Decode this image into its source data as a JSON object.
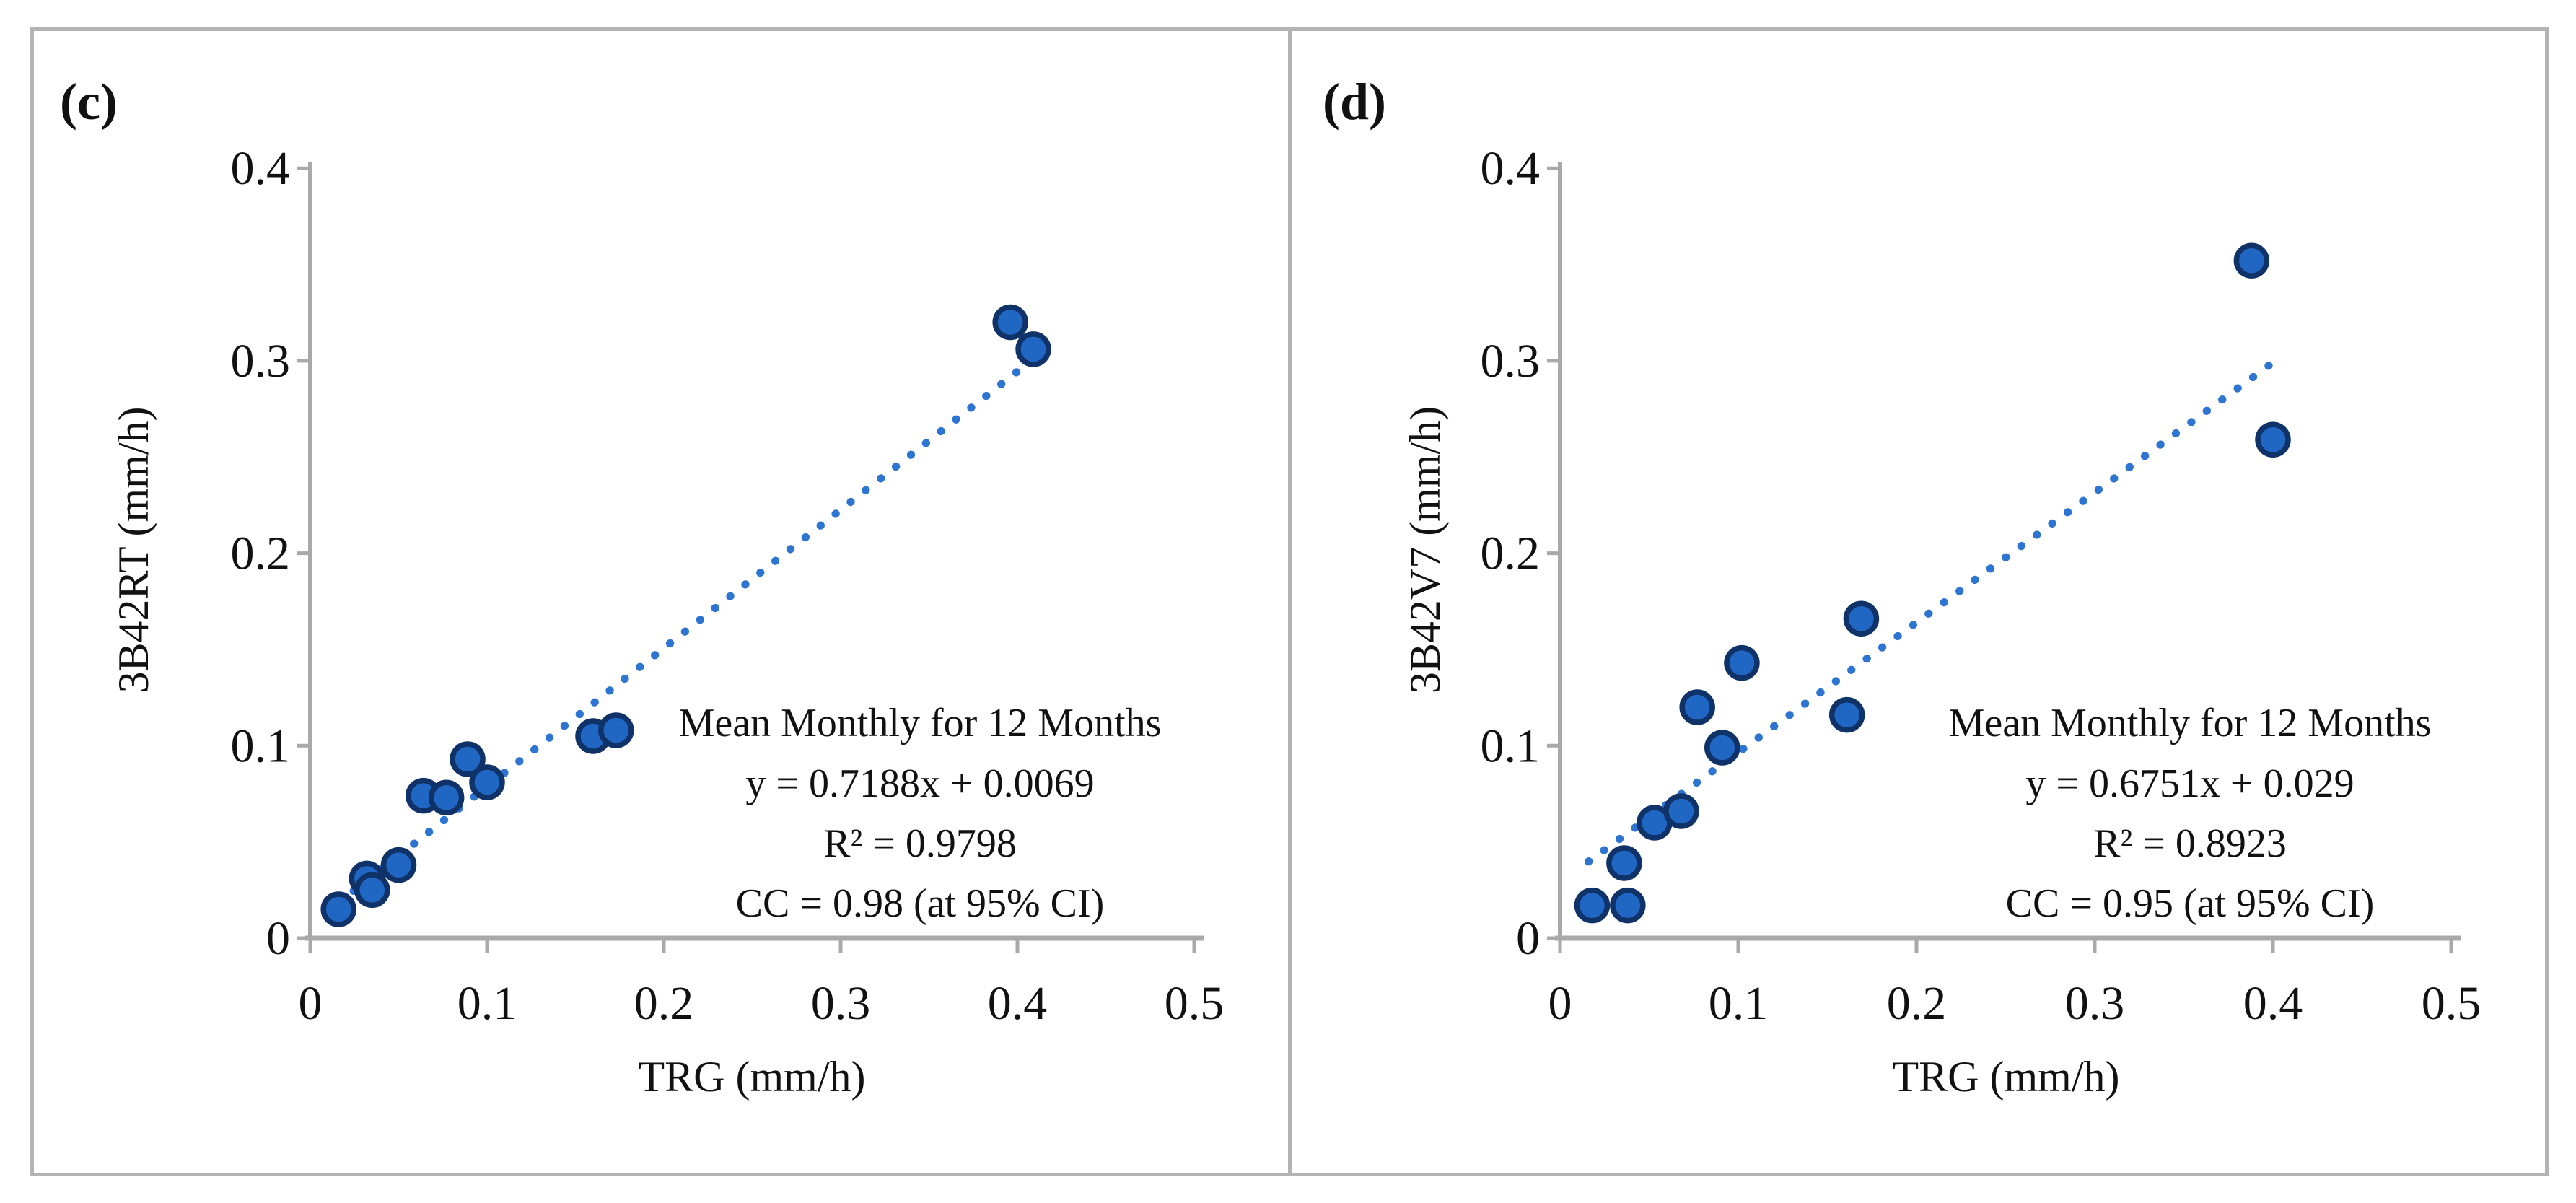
{
  "figure_type": "two-panel scatter figure comparing satellite precipitation estimates to rain gauge data",
  "colors": {
    "marker_fill": "#2067c4",
    "marker_stroke": "#0f3269",
    "trendline": "#2e75d2",
    "axis": "#a9a9a9",
    "frame_border": "#b3b3b3",
    "text": "#111111",
    "background": "#ffffff"
  },
  "chart_data": [
    {
      "type": "scatter",
      "panel_label": "(c)",
      "title": "",
      "xlabel": "TRG (mm/h)",
      "ylabel": "3B42RT (mm/h)",
      "xlim": [
        0,
        0.5
      ],
      "ylim": [
        0,
        0.4
      ],
      "x_tick_labels": [
        "0",
        "0.1",
        "0.2",
        "0.3",
        "0.4",
        "0.5"
      ],
      "y_tick_labels": [
        "0",
        "0.1",
        "0.2",
        "0.3",
        "0.4"
      ],
      "x_ticks": [
        0,
        0.1,
        0.2,
        0.3,
        0.4,
        0.5
      ],
      "y_ticks": [
        0,
        0.1,
        0.2,
        0.3,
        0.4
      ],
      "grid": false,
      "legend": "none",
      "points": [
        [
          0.016,
          0.015
        ],
        [
          0.032,
          0.031
        ],
        [
          0.035,
          0.025
        ],
        [
          0.05,
          0.038
        ],
        [
          0.064,
          0.074
        ],
        [
          0.077,
          0.073
        ],
        [
          0.089,
          0.093
        ],
        [
          0.1,
          0.081
        ],
        [
          0.16,
          0.105
        ],
        [
          0.173,
          0.108
        ],
        [
          0.396,
          0.32
        ],
        [
          0.409,
          0.306
        ]
      ],
      "trendline": {
        "style": "dotted",
        "slope": 0.7188,
        "intercept": 0.0069,
        "x_start": 0.016,
        "x_end": 0.408
      },
      "annotation": [
        "Mean Monthly for 12 Months",
        "y = 0.7188x + 0.0069",
        "R² = 0.9798",
        "CC = 0.98 (at 95% CI)"
      ]
    },
    {
      "type": "scatter",
      "panel_label": "(d)",
      "title": "",
      "xlabel": "TRG (mm/h)",
      "ylabel": "3B42V7 (mm/h)",
      "xlim": [
        0,
        0.5
      ],
      "ylim": [
        0,
        0.4
      ],
      "x_tick_labels": [
        "0",
        "0.1",
        "0.2",
        "0.3",
        "0.4",
        "0.5"
      ],
      "y_tick_labels": [
        "0",
        "0.1",
        "0.2",
        "0.3",
        "0.4"
      ],
      "x_ticks": [
        0,
        0.1,
        0.2,
        0.3,
        0.4,
        0.5
      ],
      "y_ticks": [
        0,
        0.1,
        0.2,
        0.3,
        0.4
      ],
      "grid": false,
      "legend": "none",
      "points": [
        [
          0.018,
          0.017
        ],
        [
          0.036,
          0.039
        ],
        [
          0.038,
          0.017
        ],
        [
          0.053,
          0.06
        ],
        [
          0.068,
          0.066
        ],
        [
          0.077,
          0.12
        ],
        [
          0.091,
          0.099
        ],
        [
          0.102,
          0.143
        ],
        [
          0.161,
          0.116
        ],
        [
          0.169,
          0.166
        ],
        [
          0.388,
          0.352
        ],
        [
          0.4,
          0.259
        ]
      ],
      "trendline": {
        "style": "dotted",
        "slope": 0.6751,
        "intercept": 0.029,
        "x_start": 0.016,
        "x_end": 0.401
      },
      "annotation": [
        "Mean Monthly for 12 Months",
        "y = 0.6751x + 0.029",
        "R² = 0.8923",
        "CC = 0.95 (at 95% CI)"
      ]
    }
  ]
}
